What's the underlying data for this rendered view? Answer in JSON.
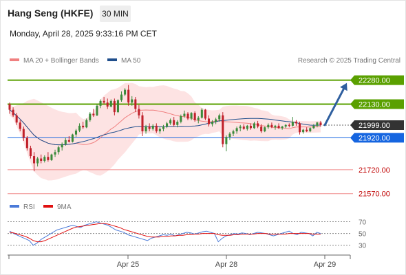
{
  "header": {
    "title": "Hang Seng (HKFE)",
    "timeframe": "30 MIN",
    "timestamp": "Monday, April 28, 2025 9:33:16 PM CET"
  },
  "legend": {
    "ma20_label": "MA 20 + Bollinger Bands",
    "ma50_label": "MA 50",
    "credit": "Research © 2025 Trading Central",
    "rsi_label": "RSI",
    "rsi_ma_label": "9MA"
  },
  "colors": {
    "ma20": "#f08080",
    "bollinger_fill": "#fde3e3",
    "ma50": "#1f4e8c",
    "bull": "#3a8a3a",
    "bear": "#c0202a",
    "resistance": "#5aa000",
    "current": "#333333",
    "pivot": "#1565e0",
    "support": "#f08a8a",
    "arrow": "#2f5f9f",
    "rsi": "#4a7ad8",
    "rsi_ma": "#e01010"
  },
  "chart_data": [
    {
      "type": "candlestick",
      "title": "Hang Seng (HKFE)",
      "timeframe": "30 MIN",
      "ylim": [
        21530,
        22330
      ],
      "x_tick_labels": [
        "Apr 25",
        "Apr 28",
        "Apr 29"
      ],
      "price_levels": [
        {
          "label": "22280.00",
          "value": 22280,
          "kind": "resistance"
        },
        {
          "label": "22130.00",
          "value": 22130,
          "kind": "resistance"
        },
        {
          "label": "21999.00",
          "value": 21999,
          "kind": "current"
        },
        {
          "label": "21920.00",
          "value": 21920,
          "kind": "pivot"
        },
        {
          "label": "21720.00",
          "value": 21720,
          "kind": "support"
        },
        {
          "label": "21570.00",
          "value": 21570,
          "kind": "support"
        }
      ],
      "projection": {
        "from": 21999,
        "to": 22280,
        "direction": "up"
      },
      "series": [
        {
          "name": "MA 20 + Bollinger Bands",
          "kind": "bollinger"
        },
        {
          "name": "MA 50",
          "kind": "ma"
        }
      ],
      "candles": [
        [
          22130,
          22140,
          22070,
          22095
        ],
        [
          22095,
          22110,
          22050,
          22060
        ],
        [
          22060,
          22075,
          22000,
          22015
        ],
        [
          22015,
          22030,
          21960,
          21975
        ],
        [
          21975,
          21990,
          21900,
          21920
        ],
        [
          21920,
          21930,
          21840,
          21855
        ],
        [
          21855,
          21870,
          21790,
          21805
        ],
        [
          21805,
          21830,
          21710,
          21760
        ],
        [
          21760,
          21800,
          21740,
          21790
        ],
        [
          21790,
          21815,
          21760,
          21775
        ],
        [
          21775,
          21810,
          21765,
          21800
        ],
        [
          21800,
          21830,
          21770,
          21780
        ],
        [
          21780,
          21820,
          21775,
          21815
        ],
        [
          21815,
          21845,
          21800,
          21830
        ],
        [
          21830,
          21870,
          21815,
          21860
        ],
        [
          21860,
          21890,
          21840,
          21880
        ],
        [
          21880,
          21920,
          21870,
          21905
        ],
        [
          21905,
          21930,
          21890,
          21895
        ],
        [
          21895,
          21945,
          21890,
          21940
        ],
        [
          21940,
          21975,
          21925,
          21965
        ],
        [
          21965,
          22010,
          21955,
          21995
        ],
        [
          21995,
          22020,
          21975,
          21985
        ],
        [
          21985,
          22040,
          21980,
          22030
        ],
        [
          22030,
          22080,
          22020,
          22070
        ],
        [
          22070,
          22100,
          22050,
          22060
        ],
        [
          22060,
          22130,
          22055,
          22120
        ],
        [
          22120,
          22160,
          22105,
          22150
        ],
        [
          22150,
          22175,
          22130,
          22140
        ],
        [
          22140,
          22165,
          22100,
          22115
        ],
        [
          22115,
          22160,
          22110,
          22150
        ],
        [
          22150,
          22165,
          22060,
          22080
        ],
        [
          22080,
          22160,
          22075,
          22155
        ],
        [
          22155,
          22210,
          22145,
          22190
        ],
        [
          22190,
          22230,
          22180,
          22220
        ],
        [
          22220,
          22250,
          22120,
          22140
        ],
        [
          22140,
          22180,
          22120,
          22160
        ],
        [
          22160,
          22175,
          22080,
          22100
        ],
        [
          22100,
          22125,
          22040,
          22060
        ],
        [
          22060,
          22080,
          21930,
          21960
        ],
        [
          21960,
          22000,
          21945,
          21990
        ],
        [
          21990,
          22010,
          21960,
          21975
        ],
        [
          21975,
          22005,
          21965,
          21995
        ],
        [
          21995,
          22010,
          21950,
          21960
        ],
        [
          21960,
          21985,
          21945,
          21975
        ],
        [
          21975,
          22000,
          21960,
          21990
        ],
        [
          21990,
          22020,
          21980,
          22010
        ],
        [
          22010,
          22040,
          22000,
          22030
        ],
        [
          22030,
          22050,
          21990,
          22000
        ],
        [
          22000,
          22030,
          21985,
          22020
        ],
        [
          22020,
          22065,
          22010,
          22055
        ],
        [
          22055,
          22090,
          22045,
          22070
        ],
        [
          22070,
          22080,
          22030,
          22040
        ],
        [
          22040,
          22080,
          22030,
          22075
        ],
        [
          22075,
          22085,
          22020,
          22030
        ],
        [
          22030,
          22055,
          22010,
          22045
        ],
        [
          22045,
          22105,
          22040,
          22095
        ],
        [
          22095,
          22100,
          22030,
          22040
        ],
        [
          22040,
          22060,
          21990,
          22005
        ],
        [
          22005,
          22030,
          21990,
          22020
        ],
        [
          22020,
          22045,
          22005,
          22035
        ],
        [
          22035,
          22070,
          22020,
          22060
        ],
        [
          22060,
          22080,
          21860,
          21880
        ],
        [
          21880,
          21935,
          21835,
          21925
        ],
        [
          21925,
          21955,
          21905,
          21945
        ],
        [
          21945,
          21970,
          21930,
          21960
        ],
        [
          21960,
          21990,
          21945,
          21980
        ],
        [
          21980,
          22000,
          21960,
          21990
        ],
        [
          21990,
          22005,
          21970,
          21975
        ],
        [
          21975,
          22000,
          21965,
          21995
        ],
        [
          21995,
          22010,
          21970,
          21980
        ],
        [
          21980,
          22020,
          21975,
          22010
        ],
        [
          22010,
          22025,
          21980,
          21990
        ],
        [
          21990,
          22005,
          21950,
          21960
        ],
        [
          21960,
          21990,
          21955,
          21985
        ],
        [
          21985,
          22010,
          21975,
          22000
        ],
        [
          22000,
          22015,
          21980,
          21985
        ],
        [
          21985,
          22000,
          21970,
          21995
        ],
        [
          21995,
          22010,
          21975,
          21980
        ],
        [
          21980,
          21995,
          21970,
          21990
        ],
        [
          21990,
          22005,
          21980,
          22000
        ],
        [
          22000,
          22010,
          21985,
          21995
        ],
        [
          21995,
          22050,
          21990,
          22020
        ],
        [
          22020,
          22030,
          21995,
          22010
        ],
        [
          22010,
          22020,
          21940,
          21955
        ],
        [
          21955,
          21975,
          21945,
          21970
        ],
        [
          21970,
          21985,
          21955,
          21960
        ],
        [
          21960,
          21985,
          21955,
          21980
        ],
        [
          21980,
          22005,
          21975,
          21995
        ],
        [
          21995,
          22020,
          21985,
          22015
        ],
        [
          22015,
          22025,
          21990,
          21999
        ]
      ]
    },
    {
      "type": "line",
      "title": "RSI",
      "ylim": [
        18,
        80
      ],
      "y_ticks": [
        70,
        50,
        30
      ],
      "series": [
        {
          "name": "RSI",
          "values": [
            54,
            50,
            47,
            44,
            41,
            38,
            30,
            34,
            40,
            44,
            48,
            52,
            56,
            58,
            60,
            62,
            64,
            62,
            60,
            64,
            66,
            68,
            70,
            68,
            66,
            64,
            60,
            56,
            54,
            52,
            48,
            46,
            44,
            42,
            40,
            38,
            42,
            44,
            46,
            48,
            47,
            49,
            46,
            48,
            50,
            52,
            51,
            49,
            51,
            53,
            54,
            52,
            50,
            36,
            42,
            46,
            48,
            50,
            49,
            51,
            50,
            48,
            50,
            52,
            51,
            50,
            48,
            46,
            48,
            50,
            52,
            54,
            50,
            48,
            52,
            51,
            50,
            46,
            52,
            50
          ]
        },
        {
          "name": "9MA",
          "values": [
            52,
            51,
            49,
            47,
            45,
            42,
            38,
            36,
            36,
            38,
            41,
            44,
            47,
            50,
            53,
            56,
            59,
            61,
            62,
            63,
            64,
            65,
            66,
            67,
            67,
            66,
            64,
            62,
            60,
            57,
            55,
            53,
            51,
            49,
            47,
            45,
            44,
            44,
            44,
            45,
            45,
            46,
            46,
            47,
            47,
            48,
            48,
            49,
            49,
            50,
            50,
            50,
            50,
            48,
            47,
            47,
            47,
            48,
            48,
            49,
            49,
            49,
            49,
            50,
            50,
            50,
            49,
            49,
            49,
            49,
            49,
            50,
            50,
            50,
            50,
            50,
            50,
            49,
            49,
            49
          ]
        }
      ]
    }
  ]
}
